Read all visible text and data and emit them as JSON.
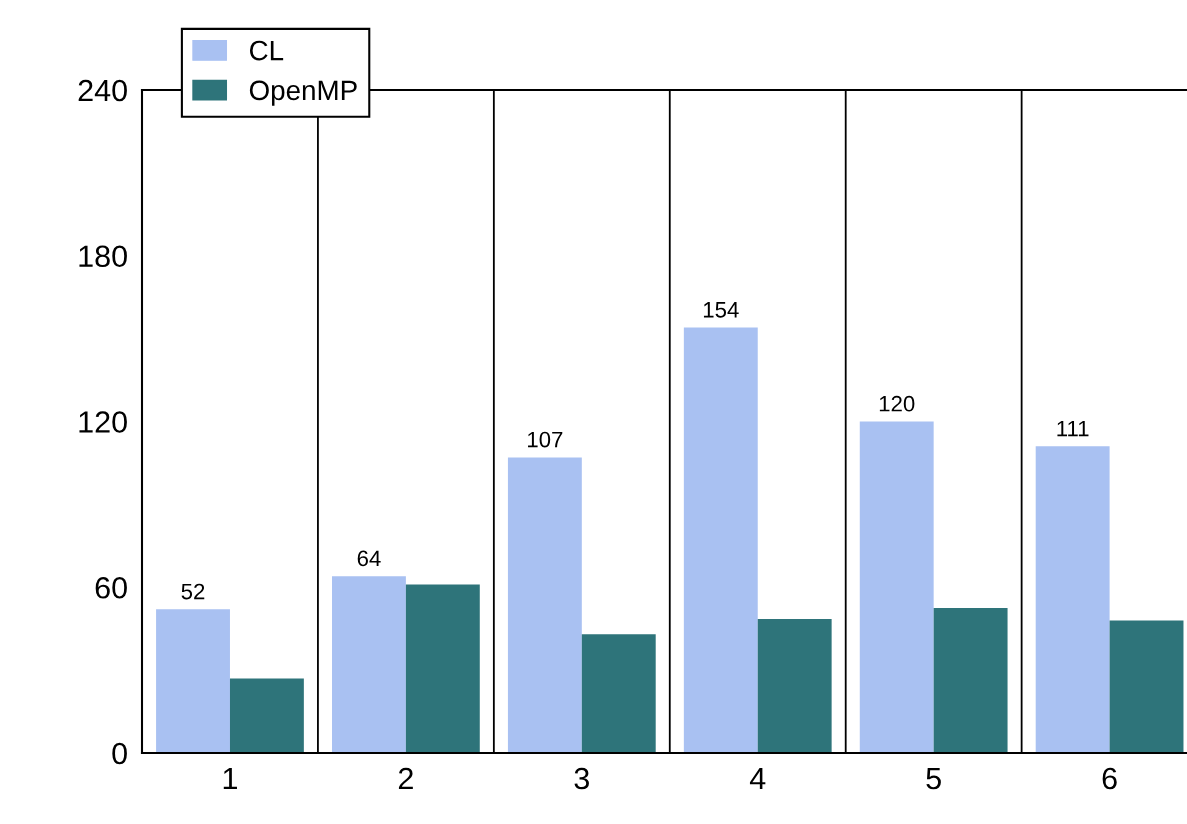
{
  "chart_data": {
    "type": "bar",
    "categories": [
      "1",
      "2",
      "3",
      "4",
      "5",
      "6"
    ],
    "series": [
      {
        "name": "CL",
        "color": "#a9c1f2",
        "values": [
          52,
          64,
          107,
          154,
          120,
          111
        ],
        "value_labels": [
          "52",
          "64",
          "107",
          "154",
          "120",
          "111"
        ]
      },
      {
        "name": "OpenMP",
        "color": "#2e747a",
        "values": [
          27,
          61,
          43,
          48.5,
          52.5,
          48
        ]
      }
    ],
    "ylim": [
      0,
      240
    ],
    "yticks": [
      0,
      60,
      120,
      180,
      240
    ],
    "grid": "x",
    "legend": "top left"
  }
}
